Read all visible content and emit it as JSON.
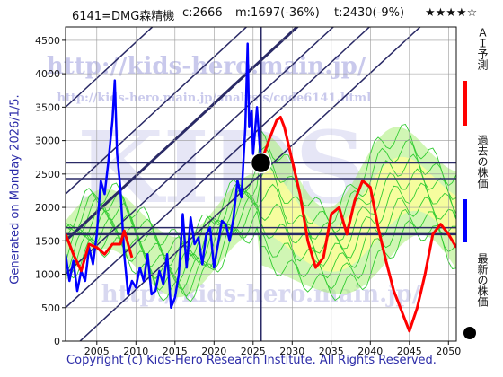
{
  "header": {
    "code_name": "6141=DMG森精機",
    "current": "c:2666",
    "min": "m:1697(-36%)",
    "target": "t:2430(-9%)",
    "stars": "★★★★☆"
  },
  "side_note": "Generated on Monday 2026/1/5.",
  "copyright": "Copyright (c) Kids-Hero Research Institute. All Rights Reserved.",
  "watermarks": {
    "url_main": "http://kids-hero.main.jp/",
    "url_analysis": "http://kids-hero.main.jp/analysis/code6141.html",
    "brand": "KIDS"
  },
  "legend": {
    "ai_forecast": "ＡＩ予測",
    "past_price": "過去の株価",
    "latest_price": "最新の株価"
  },
  "colors": {
    "past": "#0000ff",
    "forecast": "#ff0000",
    "band_green": "#33cc33",
    "band_fill_green": "#aaee77",
    "band_fill_yellow": "#ffff99",
    "axis_lines": "#2a2a66",
    "text_blue": "#2b2ba8"
  },
  "chart_data": {
    "type": "line",
    "x_ticks": [
      2005,
      2010,
      2015,
      2020,
      2025,
      2030,
      2035,
      2040,
      2045,
      2050
    ],
    "y_ticks": [
      0,
      500,
      1000,
      1500,
      2000,
      2500,
      3000,
      3500,
      4000,
      4500
    ],
    "xlim": [
      2001,
      2051
    ],
    "ylim": [
      0,
      4700
    ],
    "grid": true,
    "current_point": {
      "x": 2026.0,
      "y": 2666
    },
    "horizontal_levels": [
      2666,
      2430,
      1697,
      1600
    ],
    "vertical_marker": 2026.0,
    "series": [
      {
        "name": "過去の株価",
        "x": [
          2001.0,
          2001.5,
          2002.0,
          2002.5,
          2003.0,
          2003.5,
          2004.0,
          2004.5,
          2005.0,
          2005.5,
          2006.0,
          2006.5,
          2007.0,
          2007.3,
          2007.6,
          2008.0,
          2008.5,
          2009.0,
          2009.5,
          2010.0,
          2010.5,
          2011.0,
          2011.5,
          2012.0,
          2012.5,
          2013.0,
          2013.5,
          2014.0,
          2014.5,
          2015.0,
          2015.5,
          2016.0,
          2016.5,
          2017.0,
          2017.5,
          2018.0,
          2018.5,
          2019.0,
          2019.5,
          2020.0,
          2020.5,
          2021.0,
          2021.5,
          2022.0,
          2022.5,
          2023.0,
          2023.5,
          2024.0,
          2024.3,
          2024.5,
          2024.8,
          2025.0,
          2025.5,
          2026.0
        ],
        "y": [
          1300,
          900,
          1200,
          750,
          1050,
          900,
          1400,
          1150,
          1600,
          2400,
          2200,
          2700,
          3300,
          3900,
          2800,
          2300,
          1300,
          700,
          900,
          800,
          1100,
          900,
          1300,
          700,
          750,
          1050,
          850,
          1300,
          500,
          650,
          1000,
          1900,
          1100,
          1850,
          1450,
          1550,
          1150,
          1600,
          1700,
          1100,
          1450,
          1800,
          1750,
          1500,
          1850,
          2400,
          2150,
          3200,
          4450,
          3200,
          3450,
          2800,
          3500,
          2666
        ]
      },
      {
        "name": "ＡＩ予測",
        "x": [
          2001.0,
          2002.0,
          2003.0,
          2004.0,
          2005.0,
          2006.0,
          2007.0,
          2008.0,
          2008.5,
          2009.0,
          2009.5,
          2026.0,
          2027.0,
          2028.0,
          2028.5,
          2029.0,
          2030.0,
          2031.0,
          2032.0,
          2033.0,
          2034.0,
          2035.0,
          2036.0,
          2037.0,
          2038.0,
          2039.0,
          2040.0,
          2041.0,
          2042.0,
          2043.0,
          2044.0,
          2045.0,
          2046.0,
          2047.0,
          2048.0,
          2049.0,
          2050.0,
          2051.0
        ],
        "y": [
          1600,
          1300,
          1050,
          1450,
          1400,
          1300,
          1450,
          1450,
          1650,
          1450,
          1250,
          2666,
          3000,
          3300,
          3350,
          3200,
          2700,
          2200,
          1500,
          1100,
          1250,
          1900,
          2000,
          1600,
          2100,
          2400,
          2300,
          1700,
          1200,
          750,
          450,
          150,
          500,
          1000,
          1600,
          1750,
          1600,
          1400
        ]
      }
    ]
  }
}
